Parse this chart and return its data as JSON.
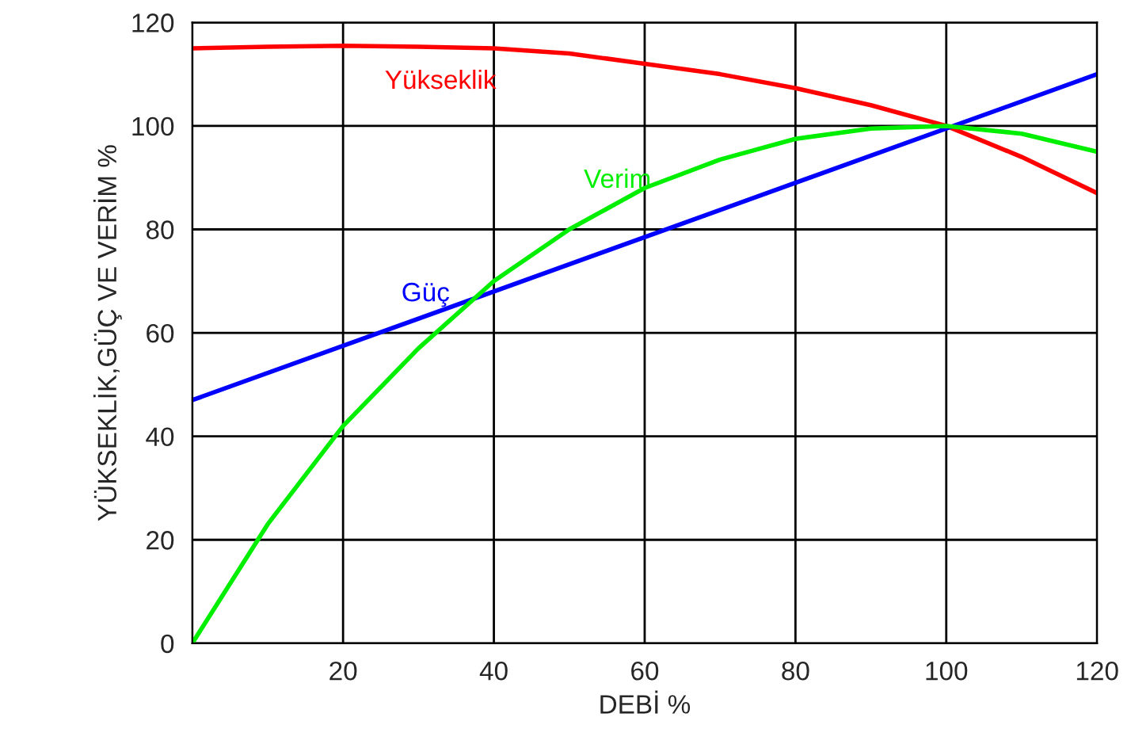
{
  "chart_data": {
    "type": "line",
    "xlabel": "DEBİ %",
    "ylabel": "YÜKSEKLİK,GÜÇ VE VERİM %",
    "series": [
      {
        "name": "Yükseklik",
        "color": "#ff0000",
        "x": [
          0,
          10,
          20,
          30,
          40,
          50,
          60,
          70,
          80,
          90,
          100,
          110,
          120
        ],
        "values": [
          115,
          115.3,
          115.5,
          115.3,
          115,
          114,
          112,
          110,
          107.3,
          104,
          100,
          94,
          87
        ]
      },
      {
        "name": "Güç",
        "color": "#0000ff",
        "x": [
          0,
          120
        ],
        "values": [
          47,
          110
        ]
      },
      {
        "name": "Verim",
        "color": "#00ee00",
        "x": [
          0,
          10,
          20,
          30,
          40,
          50,
          60,
          70,
          80,
          90,
          100,
          110,
          120
        ],
        "values": [
          0,
          23,
          42,
          57,
          70,
          80,
          88,
          93.5,
          97.5,
          99.5,
          100,
          98.5,
          95
        ]
      }
    ],
    "xlim": [
      0,
      120
    ],
    "xticks": [
      {
        "value": 0,
        "label": null
      },
      20,
      40,
      60,
      80,
      100,
      120
    ],
    "ylim": [
      0,
      120
    ],
    "yticks": [
      0,
      20,
      40,
      60,
      80,
      100,
      120
    ],
    "grid": true,
    "legend": false
  }
}
